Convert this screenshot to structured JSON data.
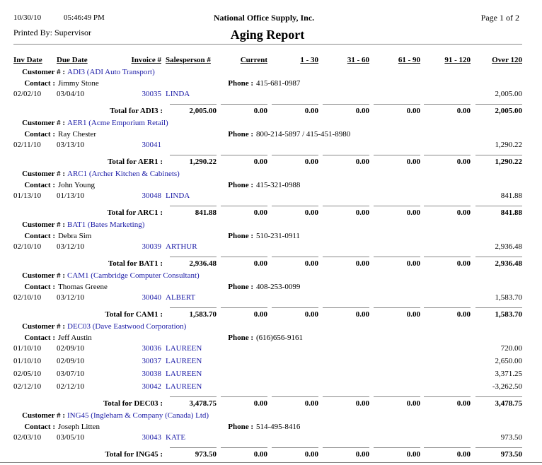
{
  "header": {
    "date": "10/30/10",
    "time": "05:46:49 PM",
    "company": "National Office Supply, Inc.",
    "page": "Page 1 of 2",
    "printed_by": "Printed By: Supervisor",
    "title": "Aging Report"
  },
  "columns": [
    "Inv Date",
    "Due Date",
    "Invoice #",
    "Salesperson #",
    "Current",
    "1 - 30",
    "31 - 60",
    "61 - 90",
    "91 - 120",
    "Over 120"
  ],
  "labels": {
    "customer": "Customer # :",
    "contact": "Contact :",
    "phone": "Phone :"
  },
  "customers": [
    {
      "customer": "ADI3 (ADI Auto Transport)",
      "contact": "Jimmy Stone",
      "phone": "415-681-0987",
      "lines": [
        {
          "inv_date": "02/02/10",
          "due_date": "03/04/10",
          "invoice": "30035",
          "salesperson": "LINDA",
          "over_120": "2,005.00"
        }
      ],
      "total_label": "Total for ADI3 :",
      "totals": [
        "2,005.00",
        "0.00",
        "0.00",
        "0.00",
        "0.00",
        "0.00",
        "2,005.00"
      ]
    },
    {
      "customer": "AER1 (Acme Emporium Retail)",
      "contact": "Ray Chester",
      "phone": "800-214-5897 / 415-451-8980",
      "lines": [
        {
          "inv_date": "02/11/10",
          "due_date": "03/13/10",
          "invoice": "30041",
          "over_120": "1,290.22"
        }
      ],
      "total_label": "Total for AER1 :",
      "totals": [
        "1,290.22",
        "0.00",
        "0.00",
        "0.00",
        "0.00",
        "0.00",
        "1,290.22"
      ]
    },
    {
      "customer": "ARC1 (Archer Kitchen & Cabinets)",
      "contact": "John Young",
      "phone": "415-321-0988",
      "lines": [
        {
          "inv_date": "01/13/10",
          "due_date": "01/13/10",
          "invoice": "30048",
          "salesperson": "LINDA",
          "over_120": "841.88"
        }
      ],
      "total_label": "Total for ARC1 :",
      "totals": [
        "841.88",
        "0.00",
        "0.00",
        "0.00",
        "0.00",
        "0.00",
        "841.88"
      ]
    },
    {
      "customer": "BAT1 (Bates Marketing)",
      "contact": "Debra Sim",
      "phone": "510-231-0911",
      "lines": [
        {
          "inv_date": "02/10/10",
          "due_date": "03/12/10",
          "invoice": "30039",
          "salesperson": "ARTHUR",
          "over_120": "2,936.48"
        }
      ],
      "total_label": "Total for BAT1 :",
      "totals": [
        "2,936.48",
        "0.00",
        "0.00",
        "0.00",
        "0.00",
        "0.00",
        "2,936.48"
      ]
    },
    {
      "customer": "CAM1 (Cambridge Computer Consultant)",
      "contact": "Thomas Greene",
      "phone": "408-253-0099",
      "lines": [
        {
          "inv_date": "02/10/10",
          "due_date": "03/12/10",
          "invoice": "30040",
          "salesperson": "ALBERT",
          "over_120": "1,583.70"
        }
      ],
      "total_label": "Total for CAM1 :",
      "totals": [
        "1,583.70",
        "0.00",
        "0.00",
        "0.00",
        "0.00",
        "0.00",
        "1,583.70"
      ]
    },
    {
      "customer": "DEC03 (Dave Eastwood Corporation)",
      "contact": "Jeff Austin",
      "phone": "(616)656-9161",
      "lines": [
        {
          "inv_date": "01/10/10",
          "due_date": "02/09/10",
          "invoice": "30036",
          "salesperson": "LAUREEN",
          "over_120": "720.00"
        },
        {
          "inv_date": "01/10/10",
          "due_date": "02/09/10",
          "invoice": "30037",
          "salesperson": "LAUREEN",
          "over_120": "2,650.00"
        },
        {
          "inv_date": "02/05/10",
          "due_date": "03/07/10",
          "invoice": "30038",
          "salesperson": "LAUREEN",
          "over_120": "3,371.25"
        },
        {
          "inv_date": "02/12/10",
          "due_date": "02/12/10",
          "invoice": "30042",
          "salesperson": "LAUREEN",
          "over_120": "-3,262.50"
        }
      ],
      "total_label": "Total for DEC03 :",
      "totals": [
        "3,478.75",
        "0.00",
        "0.00",
        "0.00",
        "0.00",
        "0.00",
        "3,478.75"
      ]
    },
    {
      "customer": "ING45 (Ingleham & Company (Canada) Ltd)",
      "contact": "Joseph Litten",
      "phone": "514-495-8416",
      "lines": [
        {
          "inv_date": "02/03/10",
          "due_date": "03/05/10",
          "invoice": "30043",
          "salesperson": "KATE",
          "over_120": "973.50"
        }
      ],
      "total_label": "Total for ING45 :",
      "totals": [
        "973.50",
        "0.00",
        "0.00",
        "0.00",
        "0.00",
        "0.00",
        "973.50"
      ]
    }
  ]
}
